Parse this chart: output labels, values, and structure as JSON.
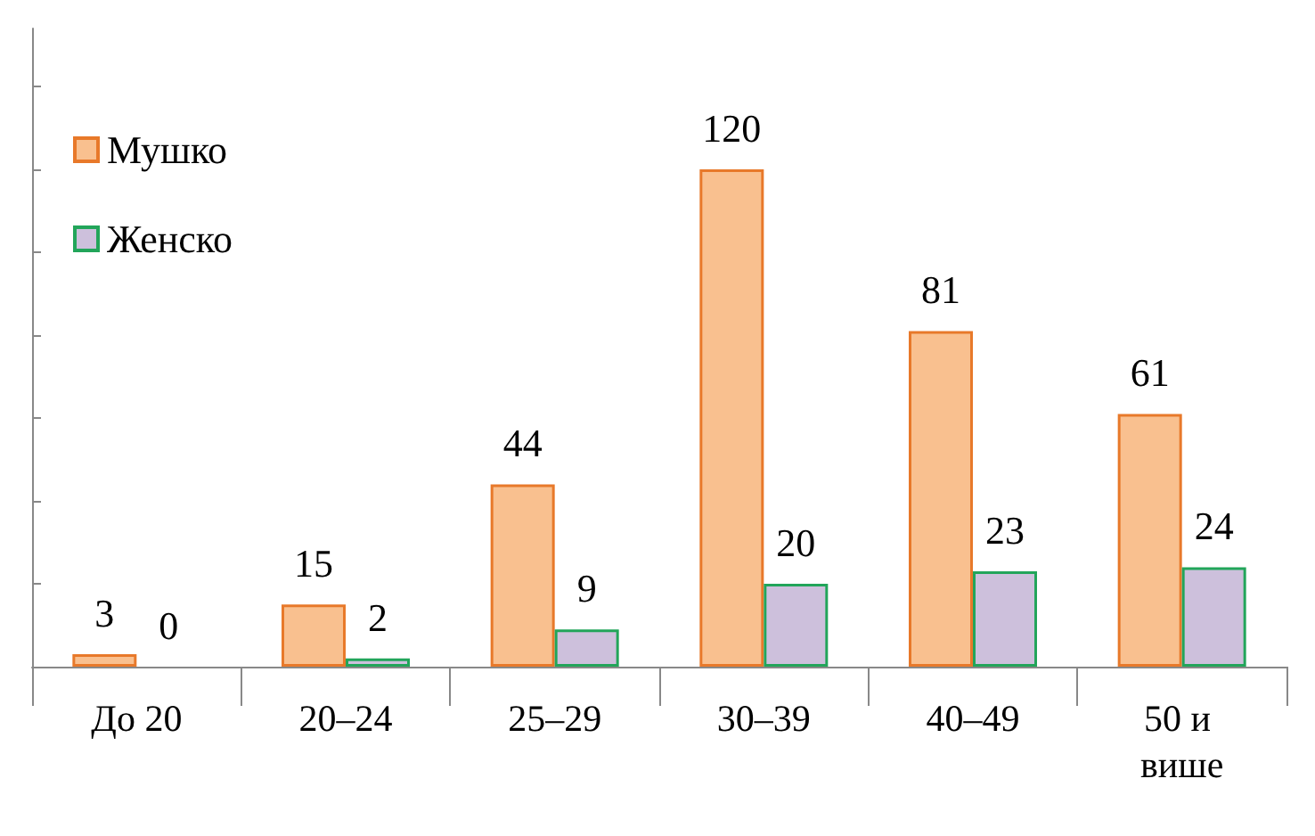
{
  "chart_data": {
    "type": "bar",
    "categories": [
      "До 20",
      "20–24",
      "25–29",
      "30–39",
      "40–49",
      "50 и више"
    ],
    "series": [
      {
        "name": "Мушко",
        "color": "#f9c08f",
        "values": [
          3,
          15,
          44,
          120,
          81,
          61
        ]
      },
      {
        "name": "Женско",
        "color": "#cdc0dc",
        "values": [
          0,
          2,
          9,
          20,
          23,
          24
        ]
      }
    ],
    "ylim": [
      0,
      154
    ],
    "yticks": [
      {
        "value": 0,
        "label": null
      },
      {
        "value": 20,
        "label": null
      },
      {
        "value": 40,
        "label": null
      },
      {
        "value": 60,
        "label": null
      },
      {
        "value": 80,
        "label": null
      },
      {
        "value": 100,
        "label": null
      },
      {
        "value": 120,
        "label": null
      },
      {
        "value": 140,
        "label": null
      }
    ],
    "data_labels": true,
    "legend": "top left",
    "grid": false,
    "tick_labels": "x"
  }
}
